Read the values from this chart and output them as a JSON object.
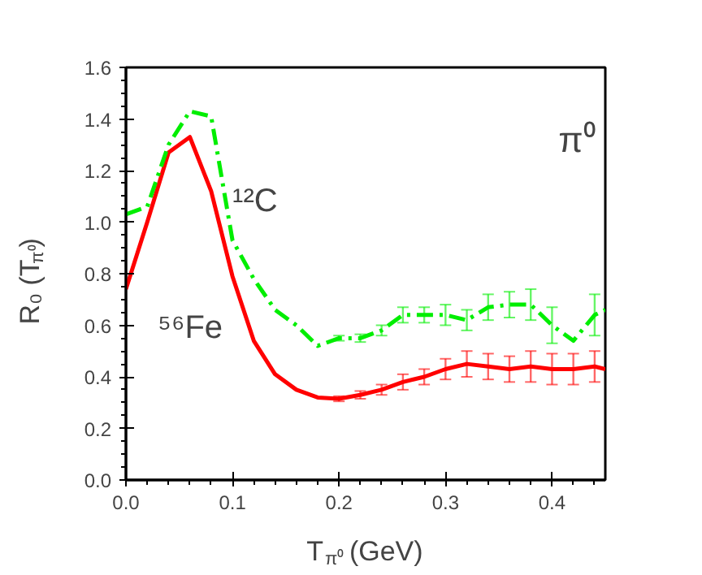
{
  "chart_data": {
    "type": "line",
    "xlabel": "T$_{π⁰}$ (GeV)",
    "ylabel": "R₀ (T$_{π⁰}$)",
    "annotations": [
      "π⁰",
      "¹²C",
      "⁵⁶Fe"
    ],
    "x": [
      0,
      0.02,
      0.04,
      0.06,
      0.08,
      0.1,
      0.12,
      0.14,
      0.16,
      0.18,
      0.2,
      0.22,
      0.24,
      0.26,
      0.28,
      0.3,
      0.32,
      0.34,
      0.36,
      0.38,
      0.4,
      0.42,
      0.44,
      0.45
    ],
    "series": [
      {
        "color": "#ff0000",
        "line_style": "solid",
        "values": [
          0.74,
          1.0,
          1.27,
          1.33,
          1.12,
          0.79,
          0.54,
          0.41,
          0.35,
          0.32,
          0.315,
          0.33,
          0.35,
          0.38,
          0.4,
          0.43,
          0.45,
          0.44,
          0.43,
          0.44,
          0.43,
          0.43,
          0.44,
          0.43
        ],
        "errors": [
          null,
          null,
          null,
          null,
          null,
          null,
          null,
          null,
          null,
          null,
          0.01,
          0.015,
          0.02,
          0.03,
          0.03,
          0.04,
          0.05,
          0.05,
          0.05,
          0.06,
          0.06,
          0.06,
          0.06,
          null
        ]
      },
      {
        "color": "#00ee00",
        "line_style": "dashdot",
        "values": [
          1.03,
          1.06,
          1.3,
          1.43,
          1.41,
          0.93,
          0.78,
          0.66,
          0.6,
          0.52,
          0.55,
          0.55,
          0.58,
          0.64,
          0.64,
          0.64,
          0.62,
          0.67,
          0.68,
          0.68,
          0.6,
          0.54,
          0.64,
          0.66
        ],
        "errors": [
          null,
          null,
          null,
          null,
          null,
          null,
          null,
          null,
          null,
          null,
          0.01,
          0.015,
          0.02,
          0.03,
          0.03,
          0.04,
          0.04,
          0.05,
          0.05,
          0.06,
          0.07,
          null,
          0.08,
          null
        ]
      }
    ],
    "xlim": [
      0,
      0.45
    ],
    "ylim": [
      0,
      1.6
    ],
    "xticks": [
      {
        "value": 0,
        "label": "0.0"
      },
      {
        "value": 0.1,
        "label": "0.1"
      },
      {
        "value": 0.2,
        "label": "0.2"
      },
      {
        "value": 0.3,
        "label": "0.3"
      },
      {
        "value": 0.4,
        "label": "0.4"
      }
    ],
    "yticks": [
      {
        "value": 0,
        "label": "0.0"
      },
      {
        "value": 0.2,
        "label": "0.2"
      },
      {
        "value": 0.4,
        "label": "0.4"
      },
      {
        "value": 0.6,
        "label": "0.6"
      },
      {
        "value": 0.8,
        "label": "0.8"
      },
      {
        "value": 1.0,
        "label": "1.0"
      },
      {
        "value": 1.2,
        "label": "1.2"
      },
      {
        "value": 1.4,
        "label": "1.4"
      },
      {
        "value": 1.6,
        "label": "1.6"
      }
    ],
    "grid": false,
    "marker": "none"
  }
}
